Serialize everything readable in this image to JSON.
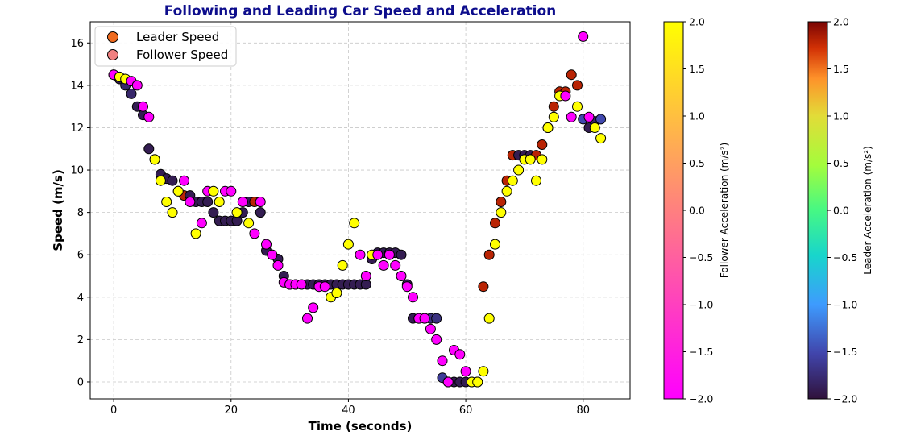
{
  "chart_data": {
    "type": "scatter",
    "title": "Following and Leading Car Speed and Acceleration",
    "xlabel": "Time (seconds)",
    "ylabel": "Speed (m/s)",
    "xlim": [
      -4,
      88
    ],
    "ylim": [
      -0.8,
      17.0
    ],
    "xticks": [
      0,
      20,
      40,
      60,
      80
    ],
    "yticks": [
      0,
      2,
      4,
      6,
      8,
      10,
      12,
      14,
      16
    ],
    "grid": true,
    "legend": {
      "position": "top-left",
      "entries": [
        "Leader Speed",
        "Follower Speed"
      ]
    },
    "leader": {
      "name": "Leader Speed",
      "x": [
        0,
        1,
        2,
        3,
        4,
        5,
        6,
        7,
        8,
        9,
        10,
        11,
        12,
        13,
        14,
        15,
        16,
        17,
        18,
        19,
        20,
        21,
        22,
        23,
        24,
        25,
        26,
        27,
        28,
        29,
        30,
        31,
        32,
        33,
        34,
        35,
        36,
        37,
        38,
        39,
        40,
        41,
        42,
        43,
        44,
        45,
        46,
        47,
        48,
        49,
        50,
        51,
        52,
        53,
        54,
        55,
        56,
        57,
        58,
        59,
        60,
        61,
        62,
        63,
        64,
        65,
        66,
        67,
        68,
        69,
        70,
        71,
        72,
        73,
        74,
        75,
        76,
        77,
        78,
        79,
        80,
        81,
        82,
        83
      ],
      "y": [
        14.5,
        14.3,
        14.0,
        13.6,
        13.0,
        12.6,
        11.0,
        10.5,
        9.8,
        9.6,
        9.5,
        9.0,
        8.8,
        8.8,
        8.5,
        8.5,
        8.5,
        8.0,
        7.6,
        7.6,
        7.6,
        7.6,
        8.0,
        8.5,
        8.5,
        8.0,
        6.2,
        6.0,
        5.8,
        5.0,
        4.6,
        4.6,
        4.6,
        4.6,
        4.6,
        4.6,
        4.6,
        4.6,
        4.6,
        4.6,
        4.6,
        4.6,
        4.6,
        4.6,
        5.8,
        6.1,
        6.1,
        6.1,
        6.1,
        6.0,
        4.6,
        3.0,
        3.0,
        3.0,
        3.0,
        3.0,
        0.2,
        0.0,
        0.0,
        0.0,
        0.0,
        0.0,
        0.0,
        4.5,
        6.0,
        7.5,
        8.5,
        9.5,
        10.7,
        10.7,
        10.7,
        10.7,
        10.7,
        11.2,
        12.0,
        13.0,
        13.7,
        13.7,
        14.5,
        14.0,
        12.4,
        12.0,
        12.3,
        12.4
      ],
      "acceleration": [
        -2,
        -1.9,
        -1.8,
        -1.8,
        -1.9,
        -1.9,
        -1.9,
        -1.9,
        -1.9,
        -1.9,
        -1.9,
        -1.9,
        1.8,
        -1.9,
        -1.9,
        -1.9,
        -1.9,
        -1.9,
        -1.9,
        -1.9,
        -1.9,
        -1.9,
        -1.9,
        -1.9,
        1.8,
        -1.9,
        -1.9,
        -1.9,
        -1.9,
        -1.9,
        -1.9,
        -1.9,
        -1.9,
        -1.9,
        -1.9,
        -1.9,
        -1.9,
        -1.9,
        -1.9,
        -1.9,
        -1.9,
        -1.9,
        -1.9,
        -1.9,
        -1.9,
        -1.9,
        -1.9,
        -1.9,
        -1.9,
        -1.9,
        -1.9,
        -1.9,
        -1.9,
        -1.9,
        -1.7,
        -1.7,
        -1.6,
        -1.9,
        -1.9,
        -1.9,
        -1.9,
        1.8,
        1.8,
        1.8,
        1.8,
        1.8,
        1.8,
        1.8,
        1.8,
        -1.9,
        -1.9,
        -1.9,
        1.8,
        1.8,
        1.8,
        1.8,
        1.8,
        1.8,
        1.8,
        1.8,
        -1.5,
        -1.9,
        -1.8,
        -1.5
      ],
      "colorbar": {
        "label": "Leader Acceleration (m/s²)",
        "ticks": [
          "2.0",
          "1.5",
          "1.0",
          "0.5",
          "0.0",
          "−0.5",
          "−1.0",
          "−1.5",
          "−2.0"
        ],
        "range": [
          -2.0,
          2.0
        ],
        "colormap": "turbo"
      }
    },
    "follower": {
      "name": "Follower Speed",
      "x": [
        0,
        1,
        2,
        3,
        4,
        5,
        6,
        7,
        8,
        9,
        10,
        11,
        12,
        13,
        14,
        15,
        16,
        17,
        18,
        19,
        20,
        21,
        22,
        23,
        24,
        25,
        26,
        27,
        28,
        29,
        30,
        31,
        32,
        33,
        34,
        35,
        36,
        37,
        38,
        39,
        40,
        41,
        42,
        43,
        44,
        45,
        46,
        47,
        48,
        49,
        50,
        51,
        52,
        53,
        54,
        55,
        56,
        57,
        58,
        59,
        60,
        61,
        62,
        63,
        64,
        65,
        66,
        67,
        68,
        69,
        70,
        71,
        72,
        73,
        74,
        75,
        76,
        77,
        78,
        79,
        80,
        81,
        82,
        83
      ],
      "y": [
        14.5,
        14.4,
        14.3,
        14.2,
        14.0,
        13.0,
        12.5,
        10.5,
        9.5,
        8.5,
        8.0,
        9.0,
        9.5,
        8.5,
        7.0,
        7.5,
        9.0,
        9.0,
        8.5,
        9.0,
        9.0,
        8.0,
        8.5,
        7.5,
        7.0,
        8.5,
        6.5,
        6.0,
        5.5,
        4.7,
        4.6,
        4.6,
        4.6,
        3.0,
        3.5,
        4.5,
        4.5,
        4.0,
        4.2,
        5.5,
        6.5,
        7.5,
        6.0,
        5.0,
        6.0,
        6.0,
        5.5,
        6.0,
        5.5,
        5.0,
        4.5,
        4.0,
        3.0,
        3.0,
        2.5,
        2.0,
        1.0,
        0.0,
        1.5,
        1.3,
        0.5,
        0.0,
        0.0,
        0.5,
        3.0,
        6.5,
        8.0,
        9.0,
        9.5,
        10.0,
        10.5,
        10.5,
        9.5,
        10.5,
        12.0,
        12.5,
        13.5,
        13.5,
        12.5,
        13.0,
        16.3,
        12.5,
        12.0,
        11.5
      ],
      "acceleration": [
        -2,
        2,
        2,
        -2,
        -2,
        -2,
        -2,
        2,
        2,
        2,
        2,
        2,
        -2,
        -2,
        2,
        -2,
        -2,
        2,
        2,
        -2,
        -2,
        2,
        -2,
        2,
        -2,
        -2,
        -2,
        -2,
        -2,
        -2,
        -2,
        -2,
        -2,
        -2,
        -2,
        -2,
        -2,
        2,
        2,
        2,
        2,
        2,
        -2,
        -2,
        2,
        -2,
        -2,
        -2,
        -2,
        -2,
        -2,
        -2,
        -2,
        -2,
        -2,
        -2,
        -2,
        -2,
        -2,
        -2,
        -2,
        2,
        2,
        2,
        2,
        2,
        2,
        2,
        2,
        2,
        2,
        2,
        2,
        2,
        2,
        2,
        2,
        -2,
        -2,
        2,
        -2,
        -2,
        2,
        2
      ],
      "colorbar": {
        "label": "Follower Acceleration (m/s²)",
        "ticks": [
          "2.0",
          "1.5",
          "1.0",
          "0.5",
          "0.0",
          "−0.5",
          "−1.0",
          "−1.5",
          "−2.0"
        ],
        "range": [
          -2.0,
          2.0
        ],
        "colormap": "spring"
      }
    }
  }
}
